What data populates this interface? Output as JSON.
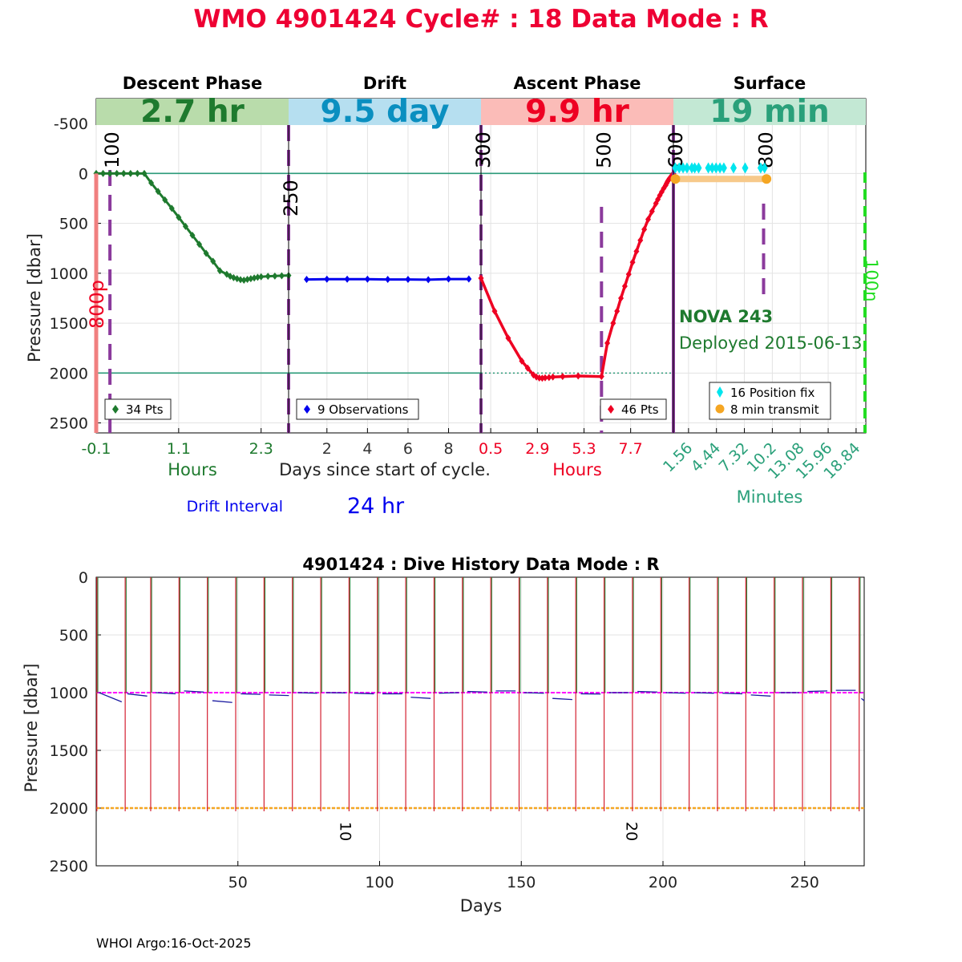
{
  "header": {
    "title": "WMO 4901424   Cycle# : 18   Data Mode : R"
  },
  "colors": {
    "title": "#ee0033",
    "descent": "#1e7a2e",
    "descent_band": "#b9dcab",
    "drift": "#0000ee",
    "drift_band": "#b6dff0",
    "drift_text": "#0a8fc0",
    "ascent": "#ee0022",
    "ascent_band": "#fbbcb8",
    "surface_band": "#c3e8d4",
    "surface_text": "#2aa07a",
    "marker_line": "#8b3a9c",
    "reference_line": "#2a9a78",
    "position_fix": "#00e5ee",
    "transmit": "#f5a623",
    "transmit_band": "#f7c98a",
    "overshoot": "#f08080",
    "deadline": "#22dd22",
    "history_descent": "#1e7a2e",
    "history_ascent": "#d42030",
    "history_drift": "#1a1aa0",
    "history_park_ref": "#ff00ff",
    "history_profile_ref": "#f5a623"
  },
  "chart_data": [
    {
      "type": "line",
      "name": "cycle-profile",
      "ylabel": "Pressure [dbar]",
      "ylim": [
        2600,
        -750
      ],
      "yticks": [
        -500,
        0,
        500,
        1000,
        1500,
        2000,
        2500
      ],
      "reference_lines": [
        0,
        2000
      ],
      "grid": true,
      "panels": [
        {
          "key": "descent",
          "label": "Descent Phase",
          "duration": "2.7 hr",
          "unit_label": "Hours",
          "xlim": [
            -0.1,
            2.7
          ],
          "xticks": [
            -0.1,
            1.1,
            2.3
          ],
          "tick_labels": [
            "-0.1",
            "1.1",
            "2.3"
          ],
          "marker_lines": [
            {
              "x": 0.1,
              "label": "100"
            },
            {
              "x": 2.7,
              "label": "250"
            }
          ],
          "series": [
            {
              "legend": "34 Pts",
              "x": [
                -0.1,
                0.0,
                0.1,
                0.2,
                0.3,
                0.4,
                0.5,
                0.6,
                0.7,
                0.8,
                0.9,
                1.0,
                1.1,
                1.2,
                1.3,
                1.4,
                1.5,
                1.6,
                1.7,
                1.8,
                1.85,
                1.9,
                1.95,
                2.0,
                2.05,
                2.1,
                2.15,
                2.2,
                2.25,
                2.3,
                2.4,
                2.5,
                2.6,
                2.7
              ],
              "y": [
                0,
                0,
                0,
                0,
                0,
                0,
                0,
                0,
                95,
                180,
                265,
                350,
                440,
                530,
                620,
                710,
                800,
                880,
                975,
                1010,
                1030,
                1045,
                1055,
                1065,
                1070,
                1062,
                1055,
                1048,
                1040,
                1035,
                1030,
                1028,
                1025,
                1022
              ]
            }
          ]
        },
        {
          "key": "drift",
          "label": "Drift",
          "duration": "9.5 day",
          "unit_label": "Days since start of cycle.",
          "xlim": [
            0.11,
            9.6
          ],
          "xticks": [
            2,
            4,
            6,
            8
          ],
          "tick_labels": [
            "2",
            "4",
            "6",
            "8"
          ],
          "marker_lines": [
            {
              "x": 9.6,
              "label": "300"
            }
          ],
          "series": [
            {
              "legend": "9 Observations",
              "x": [
                1,
                2,
                3,
                4,
                5,
                6,
                7,
                8,
                9
              ],
              "y": [
                1062,
                1060,
                1060,
                1060,
                1062,
                1062,
                1065,
                1058,
                1058
              ]
            }
          ]
        },
        {
          "key": "ascent",
          "label": "Ascent Phase",
          "duration": "9.9 hr",
          "unit_label": "Hours",
          "xlim": [
            0.0,
            9.9
          ],
          "xticks": [
            0.5,
            2.9,
            5.3,
            7.7
          ],
          "tick_labels": [
            "0.5",
            "2.9",
            "5.3",
            "7.7"
          ],
          "marker_lines": [
            {
              "x": 0.0,
              "label": "300"
            },
            {
              "x": 6.2,
              "label": "500"
            },
            {
              "x": 9.9,
              "label": "600"
            }
          ],
          "series": [
            {
              "legend": "46 Pts",
              "x": [
                0.0,
                0.7,
                1.4,
                2.1,
                2.4,
                2.7,
                2.85,
                3.0,
                3.15,
                3.3,
                3.5,
                3.7,
                4.2,
                5.0,
                6.2,
                6.5,
                6.8,
                7.0,
                7.2,
                7.4,
                7.6,
                7.8,
                8.0,
                8.2,
                8.4,
                8.6,
                8.8,
                9.0,
                9.1,
                9.2,
                9.3,
                9.4,
                9.5,
                9.55,
                9.6,
                9.65,
                9.7,
                9.75,
                9.8,
                9.82,
                9.84,
                9.86,
                9.88,
                9.9,
                9.9,
                9.9
              ],
              "y": [
                1050,
                1380,
                1650,
                1880,
                1950,
                2020,
                2040,
                2050,
                2052,
                2048,
                2045,
                2040,
                2035,
                2030,
                2035,
                1700,
                1500,
                1380,
                1250,
                1130,
                1010,
                890,
                780,
                670,
                560,
                460,
                380,
                300,
                260,
                220,
                185,
                150,
                120,
                100,
                80,
                65,
                50,
                40,
                30,
                22,
                15,
                10,
                6,
                3,
                2,
                1
              ]
            }
          ]
        },
        {
          "key": "surface",
          "label": "Surface",
          "duration": "19 min",
          "unit_label": "Minutes",
          "xlim": [
            0.0,
            19.84
          ],
          "xticks": [
            1.56,
            4.44,
            7.32,
            10.2,
            13.08,
            15.96,
            18.84
          ],
          "tick_labels": [
            "1.56",
            "4.44",
            "7.32",
            "10.2",
            "13.08",
            "15.96",
            "18.84"
          ],
          "marker_lines": [
            {
              "x": 0.0,
              "label": "600"
            },
            {
              "x": 9.3,
              "label": "800"
            }
          ],
          "deadline": {
            "x": 19.84,
            "label": "100n"
          },
          "position_fix": {
            "legend": "16 Position fix",
            "x": [
              0.2,
              0.6,
              1.0,
              1.4,
              1.9,
              2.2,
              2.6,
              3.6,
              4.0,
              4.4,
              4.8,
              5.2,
              6.2,
              7.4,
              9.0,
              9.4
            ],
            "y": [
              -55,
              -55,
              -55,
              -55,
              -55,
              -55,
              -55,
              -55,
              -55,
              -55,
              -55,
              -55,
              -55,
              -55,
              -55,
              -55
            ]
          },
          "transmit": {
            "legend": "8 min transmit",
            "x": [
              0.2,
              9.6
            ],
            "y": [
              55,
              55
            ]
          }
        }
      ],
      "annotations": {
        "float_type": "NOVA 243",
        "deployed": "Deployed 2015-06-13",
        "overshoot_label": "800p",
        "drift_interval_label": "Drift Interval",
        "drift_interval_value": "24 hr"
      }
    },
    {
      "type": "line",
      "name": "dive-history",
      "title": "4901424 : Dive History      Data Mode : R",
      "xlabel": "Days",
      "ylabel": "Pressure [dbar]",
      "xlim": [
        0,
        271
      ],
      "ylim": [
        2500,
        0
      ],
      "xticks": [
        50,
        100,
        150,
        200,
        250
      ],
      "yticks": [
        0,
        500,
        1000,
        1500,
        2000,
        2500
      ],
      "park_pressure": 1000,
      "profile_pressure": 2000,
      "grid": true,
      "cycle_labels": [
        {
          "x": 89,
          "label": "10"
        },
        {
          "x": 190,
          "label": "20"
        }
      ],
      "surfacings": [
        0,
        10,
        19,
        29,
        39,
        49,
        59,
        69,
        79,
        89,
        99,
        109,
        119,
        129,
        139,
        149,
        159,
        169,
        179,
        189,
        199,
        209,
        219,
        229,
        239,
        249,
        259,
        269
      ],
      "drift_segments": [
        {
          "x": [
            1,
            9
          ],
          "y": [
            1000,
            1080
          ]
        },
        {
          "x": [
            11,
            18
          ],
          "y": [
            1010,
            1030
          ]
        },
        {
          "x": [
            21,
            28
          ],
          "y": [
            1000,
            1010
          ]
        },
        {
          "x": [
            31,
            38
          ],
          "y": [
            985,
            995
          ]
        },
        {
          "x": [
            41,
            48
          ],
          "y": [
            1070,
            1085
          ]
        },
        {
          "x": [
            51,
            58
          ],
          "y": [
            1010,
            1015
          ]
        },
        {
          "x": [
            61,
            68
          ],
          "y": [
            1020,
            1025
          ]
        },
        {
          "x": [
            71,
            78
          ],
          "y": [
            1000,
            1005
          ]
        },
        {
          "x": [
            81,
            88
          ],
          "y": [
            1000,
            1002
          ]
        },
        {
          "x": [
            91,
            98
          ],
          "y": [
            1005,
            1010
          ]
        },
        {
          "x": [
            101,
            108
          ],
          "y": [
            1010,
            1010
          ]
        },
        {
          "x": [
            111,
            118
          ],
          "y": [
            1040,
            1050
          ]
        },
        {
          "x": [
            121,
            128
          ],
          "y": [
            1005,
            1000
          ]
        },
        {
          "x": [
            131,
            138
          ],
          "y": [
            990,
            995
          ]
        },
        {
          "x": [
            141,
            148
          ],
          "y": [
            985,
            985
          ]
        },
        {
          "x": [
            151,
            158
          ],
          "y": [
            1000,
            1005
          ]
        },
        {
          "x": [
            161,
            168
          ],
          "y": [
            1050,
            1060
          ]
        },
        {
          "x": [
            171,
            178
          ],
          "y": [
            1010,
            1012
          ]
        },
        {
          "x": [
            181,
            188
          ],
          "y": [
            1000,
            1000
          ]
        },
        {
          "x": [
            191,
            198
          ],
          "y": [
            990,
            995
          ]
        },
        {
          "x": [
            201,
            208
          ],
          "y": [
            1000,
            1005
          ]
        },
        {
          "x": [
            211,
            218
          ],
          "y": [
            1000,
            1005
          ]
        },
        {
          "x": [
            221,
            228
          ],
          "y": [
            1005,
            1010
          ]
        },
        {
          "x": [
            231,
            238
          ],
          "y": [
            1020,
            1030
          ]
        },
        {
          "x": [
            241,
            248
          ],
          "y": [
            1000,
            1000
          ]
        },
        {
          "x": [
            251,
            258
          ],
          "y": [
            990,
            985
          ]
        },
        {
          "x": [
            261,
            268
          ],
          "y": [
            980,
            980
          ]
        },
        {
          "x": [
            270,
            271
          ],
          "y": [
            1050,
            1070
          ]
        }
      ]
    }
  ],
  "footer": {
    "credit": "WHOI Argo:16-Oct-2025"
  }
}
